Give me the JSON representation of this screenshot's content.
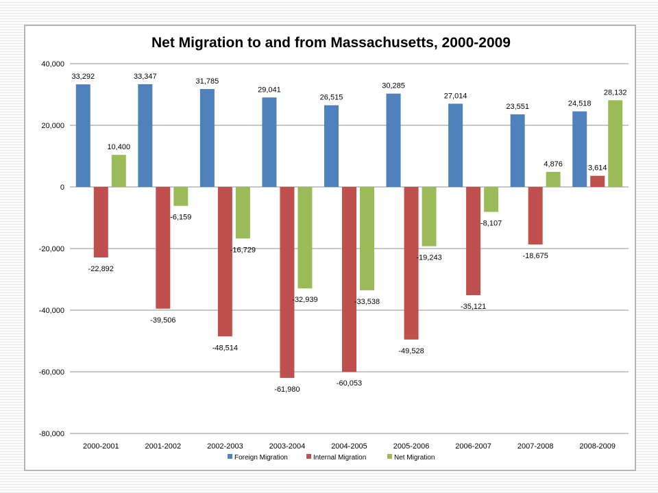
{
  "chart_data": {
    "type": "bar",
    "title": "Net Migration to and from Massachusetts, 2000-2009",
    "xlabel": "",
    "ylabel": "",
    "ylim": [
      -80000,
      40000
    ],
    "yticks": [
      40000,
      20000,
      0,
      -20000,
      -40000,
      -60000,
      -80000
    ],
    "ytick_labels": [
      "40,000",
      "20,000",
      "0",
      "-20,000",
      "-40,000",
      "-60,000",
      "-80,000"
    ],
    "grid": true,
    "legend_position": "bottom",
    "categories": [
      "2000-2001",
      "2001-2002",
      "2002-2003",
      "2003-2004",
      "2004-2005",
      "2005-2006",
      "2006-2007",
      "2007-2008",
      "2008-2009"
    ],
    "series": [
      {
        "name": "Foreign Migration",
        "color": "#4f81bd",
        "values": [
          33292,
          33347,
          31785,
          29041,
          26515,
          30285,
          27014,
          23551,
          24518
        ],
        "labels": [
          "33,292",
          "33,347",
          "31,785",
          "29,041",
          "26,515",
          "30,285",
          "27,014",
          "23,551",
          "24,518"
        ]
      },
      {
        "name": "Internal Migration",
        "color": "#c0504d",
        "values": [
          -22892,
          -39506,
          -48514,
          -61980,
          -60053,
          -49528,
          -35121,
          -18675,
          3614
        ],
        "labels": [
          "-22,892",
          "-39,506",
          "-48,514",
          "-61,980",
          "-60,053",
          "-49,528",
          "-35,121",
          "-18,675",
          "3,614"
        ]
      },
      {
        "name": "Net Migration",
        "color": "#9bbb59",
        "values": [
          10400,
          -6159,
          -16729,
          -32939,
          -33538,
          -19243,
          -8107,
          4876,
          28132
        ],
        "labels": [
          "10,400",
          "-6,159",
          "-16,729",
          "-32,939",
          "-33,538",
          "-19,243",
          "-8,107",
          "4,876",
          "28,132"
        ]
      }
    ]
  }
}
